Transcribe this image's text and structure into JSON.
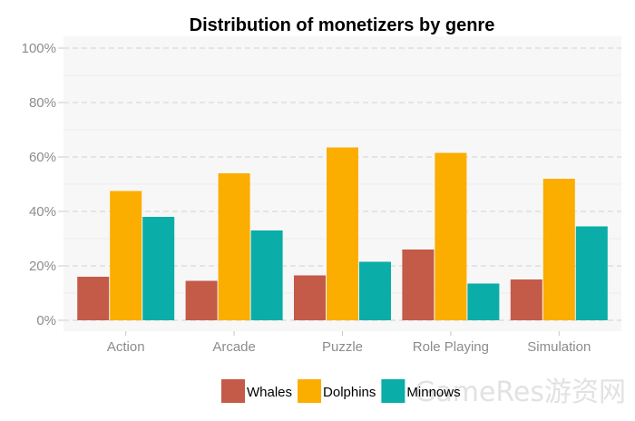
{
  "chart_data": {
    "type": "bar",
    "title": "Distribution of monetizers by genre",
    "xlabel": "",
    "ylabel": "",
    "categories": [
      "Action",
      "Arcade",
      "Puzzle",
      "Role Playing",
      "Simulation"
    ],
    "series": [
      {
        "name": "Whales",
        "color": "#c45a48",
        "values": [
          16,
          14.5,
          16.5,
          26,
          15
        ]
      },
      {
        "name": "Dolphins",
        "color": "#fbad00",
        "values": [
          47.5,
          54,
          63.5,
          61.5,
          52
        ]
      },
      {
        "name": "Minnows",
        "color": "#0aada7",
        "values": [
          38,
          33,
          21.5,
          13.5,
          34.5
        ]
      }
    ],
    "ylim": [
      0,
      100
    ],
    "yticks": [
      "0%",
      "20%",
      "40%",
      "60%",
      "80%",
      "100%"
    ],
    "grid": true,
    "legend_position": "bottom"
  },
  "watermark": "GameRes游资网"
}
